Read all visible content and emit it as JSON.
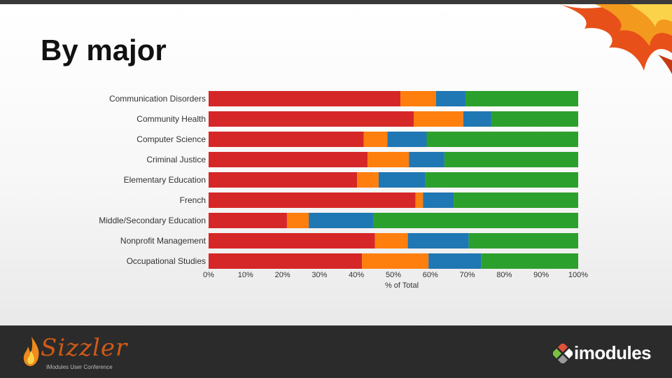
{
  "title": "By major",
  "footer": {
    "brand_left": "Sizzler",
    "brand_left_sub": "iModules User Conference",
    "brand_right": "imodules"
  },
  "colors": {
    "red": "#d62728",
    "orange": "#ff7f0e",
    "blue": "#1f77b4",
    "green": "#2ca02c"
  },
  "chart_data": {
    "type": "bar",
    "orientation": "horizontal",
    "stacked": true,
    "title": "",
    "xlabel": "% of Total",
    "ylabel": "",
    "xlim": [
      0,
      100
    ],
    "x_ticks": [
      "0%",
      "10%",
      "20%",
      "30%",
      "40%",
      "50%",
      "60%",
      "70%",
      "80%",
      "90%",
      "100%"
    ],
    "categories": [
      "Communication Disorders",
      "Community Health",
      "Computer Science",
      "Criminal Justice",
      "Elementary Education",
      "French",
      "Middle/Secondary Education",
      "Nonprofit Management",
      "Occupational Studies"
    ],
    "series": [
      {
        "color": "#d62728",
        "values": [
          51.9,
          55.5,
          42.0,
          43.0,
          40.2,
          56.0,
          21.2,
          45.0,
          41.5
        ]
      },
      {
        "color": "#ff7f0e",
        "values": [
          9.6,
          13.4,
          6.4,
          11.2,
          5.8,
          2.0,
          5.9,
          8.9,
          18.0
        ]
      },
      {
        "color": "#1f77b4",
        "values": [
          8.0,
          7.6,
          10.6,
          9.6,
          12.6,
          8.3,
          17.4,
          16.5,
          14.2
        ]
      },
      {
        "color": "#2ca02c",
        "values": [
          30.5,
          23.5,
          41.0,
          36.2,
          41.4,
          33.7,
          55.5,
          29.6,
          26.3
        ]
      }
    ],
    "grid": false,
    "legend": "none"
  }
}
